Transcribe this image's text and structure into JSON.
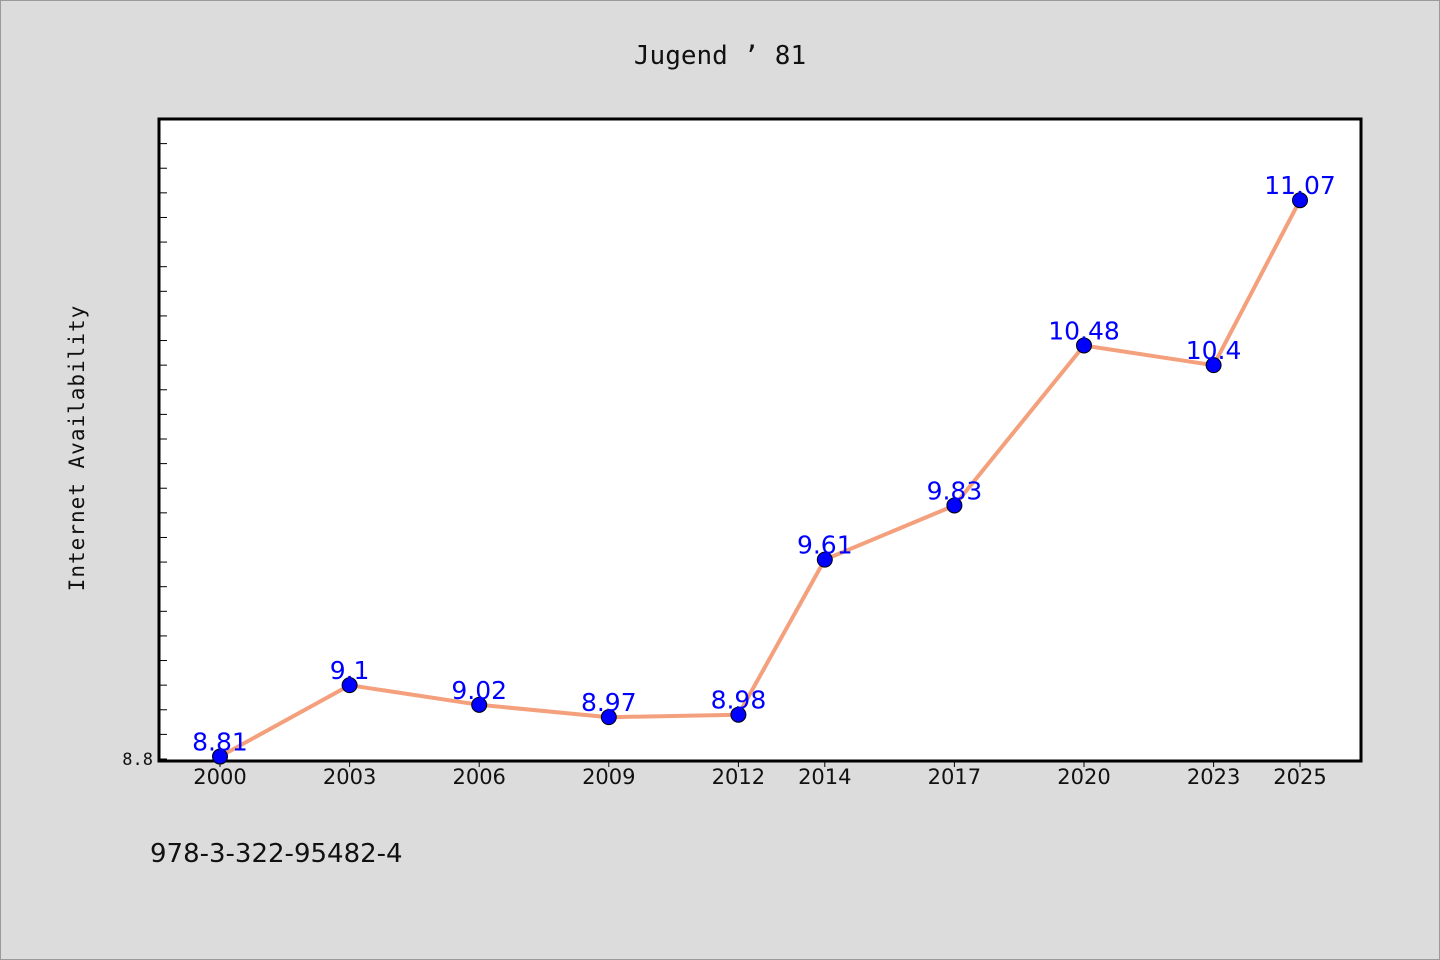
{
  "chart_data": {
    "type": "line",
    "title": "Jugend ’ 81",
    "xlabel": "",
    "ylabel": "Internet Availability",
    "categories": [
      "2000",
      "2003",
      "2006",
      "2009",
      "2012",
      "2014",
      "2017",
      "2020",
      "2023",
      "2025"
    ],
    "series": [
      {
        "values": [
          8.81,
          9.1,
          9.02,
          8.97,
          8.98,
          9.61,
          9.83,
          10.48,
          10.4,
          11.07
        ],
        "data_labels": [
          "8.81",
          "9.1",
          "9.02",
          "8.97",
          "8.98",
          "9.61",
          "9.83",
          "10.48",
          "10.4",
          "11.07"
        ],
        "line_color": "#f4a07c",
        "marker_color": "#0000ff"
      }
    ],
    "ylim": [
      8.8,
      11.4
    ],
    "ytick_labels": [
      "8.8"
    ],
    "grid": false,
    "legend": "none",
    "footnote": "978-3-322-95482-4"
  }
}
